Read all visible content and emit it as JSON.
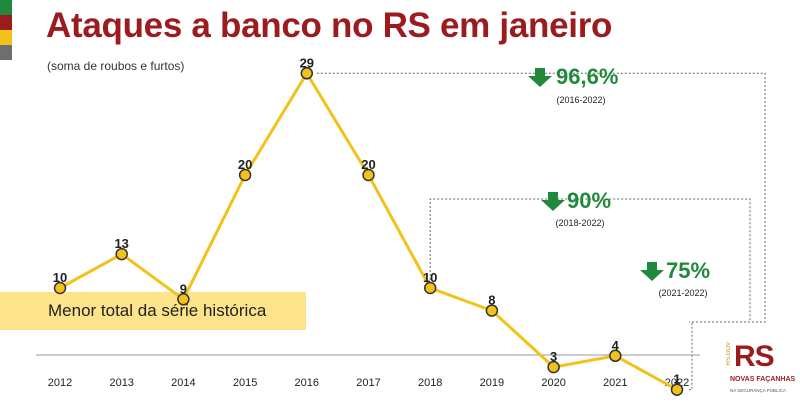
{
  "header": {
    "title": "Ataques a banco no RS em janeiro",
    "subtitle": "(soma de roubos e furtos)"
  },
  "stripe_colors": [
    "#1f8a3b",
    "#9b1b1f",
    "#f2c21b",
    "#6d6e70"
  ],
  "highlight_label": "Menor total da série histórica",
  "callouts": [
    {
      "pct": "96,6%",
      "period": "(2016-2022)",
      "from_index": 4,
      "to_index": 10,
      "arrow_icon": "arrow-down-icon"
    },
    {
      "pct": "90%",
      "period": "(2018-2022)",
      "from_index": 6,
      "to_index": 10,
      "arrow_icon": "arrow-down-icon"
    },
    {
      "pct": "75%",
      "period": "(2021-2022)",
      "from_index": 9,
      "to_index": 10,
      "arrow_icon": "arrow-down-icon"
    }
  ],
  "logo": {
    "mark": "RS",
    "gov": "RS.GOV",
    "line1": "NOVAS FAÇANHAS",
    "line2": "NA SEGURANÇA PÚBLICA"
  },
  "colors": {
    "title": "#9b1b1f",
    "line": "#f2c21b",
    "marker_fill": "#f2c21b",
    "marker_stroke": "#333333",
    "arrow": "#1f8a3b",
    "highlight": "#fde38a"
  },
  "chart_data": {
    "type": "line",
    "title": "Ataques a banco no RS em janeiro",
    "subtitle": "(soma de roubos e furtos)",
    "x": [
      "2012",
      "2013",
      "2014",
      "2015",
      "2016",
      "2017",
      "2018",
      "2019",
      "2020",
      "2021",
      "2022"
    ],
    "series": [
      {
        "values": [
          10,
          13,
          9,
          20,
          29,
          20,
          10,
          8,
          3,
          4,
          1
        ]
      }
    ],
    "ylim": [
      0,
      30
    ],
    "grid": false,
    "data_labels": true
  }
}
